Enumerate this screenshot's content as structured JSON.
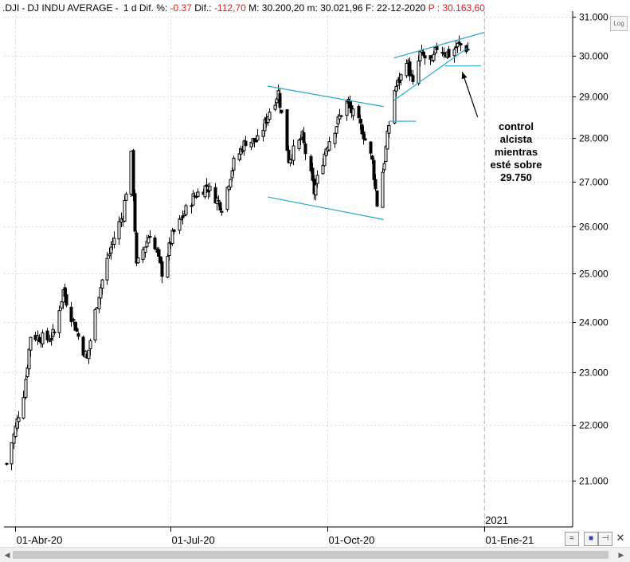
{
  "header": {
    "symbol": ".DJI",
    "name": "DJ INDU AVERAGE",
    "period": "1 d",
    "dif_pct_label": "Dif. %:",
    "dif_pct": "-0.37",
    "dif_label": "Dif.:",
    "dif": "-112,70",
    "max_label": "M:",
    "max": "30.200,20",
    "min_label": "m:",
    "min": "30.021,96",
    "date_label": "F:",
    "date": "22-12-2020",
    "price_label": "P :",
    "price": "30.163,60"
  },
  "annotation": {
    "lines": [
      "control",
      "alcista",
      "mientras",
      "esté sobre",
      "29.750"
    ]
  },
  "controls": {
    "log_label": "Log",
    "toggle_glyph": "≈",
    "save_glyph": "■",
    "pin_glyph": "⊣",
    "close_glyph": "✕",
    "scroll_left": "◀",
    "scroll_right": "▶"
  },
  "colors": {
    "candle": "#000000",
    "trendline": "#29a6c9",
    "grid": "#d8d8d8",
    "negative": "#d2221f",
    "arrow": "#000000"
  },
  "chart_data": {
    "type": "candlestick",
    "x_tick_labels": [
      "01-Abr-20",
      "01-Jul-20",
      "01-Oct-20",
      "01-Ene-21"
    ],
    "year_marker": "2021",
    "y_ticks": [
      21000,
      22000,
      23000,
      24000,
      25000,
      26000,
      27000,
      28000,
      29000,
      30000,
      31000
    ],
    "y_tick_labels": [
      "21.000",
      "22.000",
      "23.000",
      "24.000",
      "25.000",
      "26.000",
      "27.000",
      "28.000",
      "29.000",
      "30.000",
      "31.000"
    ],
    "ylim": [
      20200,
      31150
    ],
    "y_scale": "log",
    "grid": true,
    "first_date": "2020-03-27",
    "last_date": "2020-12-22",
    "anchors": [
      [
        "2020-03-27",
        21300
      ],
      [
        "2020-04-06",
        22600
      ],
      [
        "2020-04-10",
        23720
      ],
      [
        "2020-04-20",
        23650
      ],
      [
        "2020-04-24",
        23780
      ],
      [
        "2020-04-29",
        24630
      ],
      [
        "2020-05-07",
        23800
      ],
      [
        "2020-05-13",
        23250
      ],
      [
        "2020-05-20",
        24570
      ],
      [
        "2020-05-27",
        25550
      ],
      [
        "2020-06-03",
        26270
      ],
      [
        "2020-06-08",
        27570
      ],
      [
        "2020-06-11",
        25130
      ],
      [
        "2020-06-19",
        25870
      ],
      [
        "2020-06-26",
        25020
      ],
      [
        "2020-07-02",
        25800
      ],
      [
        "2020-07-14",
        26640
      ],
      [
        "2020-07-22",
        26900
      ],
      [
        "2020-07-31",
        26430
      ],
      [
        "2020-08-07",
        27430
      ],
      [
        "2020-08-14",
        27930
      ],
      [
        "2020-08-21",
        27930
      ],
      [
        "2020-08-28",
        28650
      ],
      [
        "2020-09-02",
        29100
      ],
      [
        "2020-09-08",
        27500
      ],
      [
        "2020-09-16",
        28030
      ],
      [
        "2020-09-23",
        26760
      ],
      [
        "2020-09-30",
        27780
      ],
      [
        "2020-10-09",
        28590
      ],
      [
        "2020-10-12",
        28840
      ],
      [
        "2020-10-21",
        28210
      ],
      [
        "2020-10-27",
        27460
      ],
      [
        "2020-10-30",
        26500
      ],
      [
        "2020-11-03",
        27480
      ],
      [
        "2020-11-06",
        28320
      ],
      [
        "2020-11-09",
        29160
      ],
      [
        "2020-11-13",
        29480
      ],
      [
        "2020-11-16",
        29950
      ],
      [
        "2020-11-20",
        29260
      ],
      [
        "2020-11-24",
        30050
      ],
      [
        "2020-12-01",
        29820
      ],
      [
        "2020-12-04",
        30220
      ],
      [
        "2020-12-11",
        30040
      ],
      [
        "2020-12-17",
        30300
      ],
      [
        "2020-12-22",
        30163
      ]
    ],
    "trendlines": [
      {
        "from": [
          "2020-08-27",
          29250
        ],
        "to": [
          "2020-11-03",
          28750
        ]
      },
      {
        "from": [
          "2020-08-27",
          26650
        ],
        "to": [
          "2020-11-03",
          26150
        ]
      },
      {
        "from": [
          "2020-11-09",
          28900
        ],
        "to": [
          "2020-12-22",
          30200
        ]
      },
      {
        "from": [
          "2020-11-09",
          29950
        ],
        "to": [
          "2021-01-01",
          30600
        ]
      },
      {
        "from": [
          "2020-11-06",
          28400
        ],
        "to": [
          "2020-11-22",
          28400
        ]
      },
      {
        "from": [
          "2020-12-09",
          29750
        ],
        "to": [
          "2020-12-30",
          29750
        ]
      }
    ],
    "arrow": {
      "from": [
        "2020-12-28",
        28500
      ],
      "to": [
        "2020-12-19",
        29600
      ]
    }
  }
}
